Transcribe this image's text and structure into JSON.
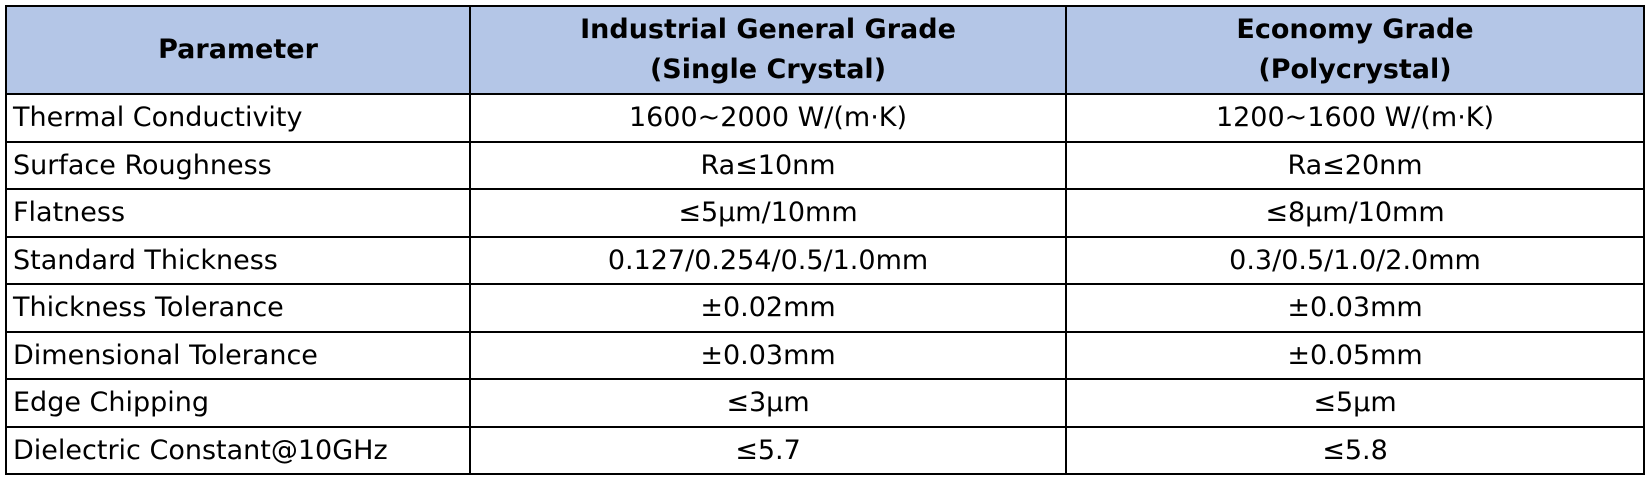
{
  "table": {
    "header": [
      [
        "Parameter"
      ],
      [
        "Industrial General Grade",
        "(Single Crystal)"
      ],
      [
        "Economy Grade",
        "(Polycrystal)"
      ]
    ],
    "rows": [
      [
        "Thermal Conductivity",
        "1600~2000 W/(m·K)",
        "1200~1600 W/(m·K)"
      ],
      [
        "Surface Roughness",
        "Ra≤10nm",
        "Ra≤20nm"
      ],
      [
        "Flatness",
        "≤5μm/10mm",
        "≤8μm/10mm"
      ],
      [
        "Standard Thickness",
        "0.127/0.254/0.5/1.0mm",
        "0.3/0.5/1.0/2.0mm"
      ],
      [
        "Thickness Tolerance",
        "±0.02mm",
        "±0.03mm"
      ],
      [
        "Dimensional Tolerance",
        "±0.03mm",
        "±0.05mm"
      ],
      [
        "Edge Chipping",
        "≤3μm",
        "≤5μm"
      ],
      [
        "Dielectric Constant@10GHz",
        "≤5.7",
        "≤5.8"
      ]
    ]
  }
}
